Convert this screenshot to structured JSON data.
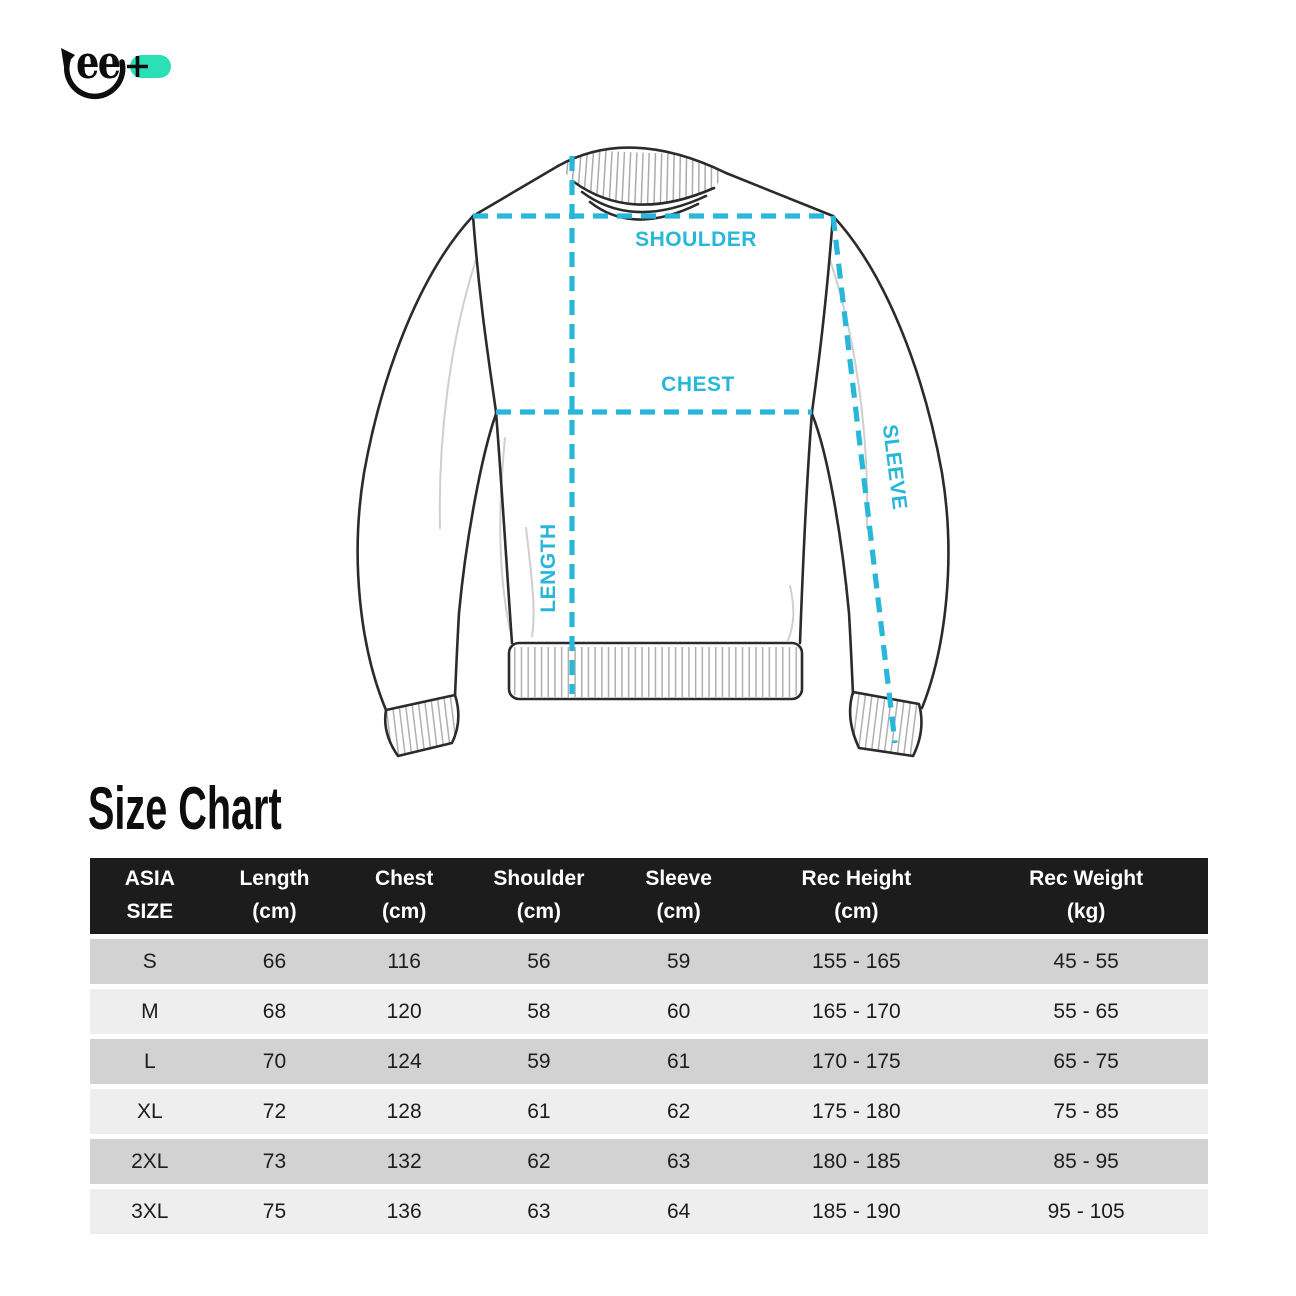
{
  "logo": {
    "text": "ee",
    "plus": "+",
    "pill_color": "#2ce0b5",
    "mark_color": "#0d0d0d"
  },
  "diagram": {
    "labels": {
      "shoulder": "SHOULDER",
      "chest": "CHEST",
      "length": "LENGTH",
      "sleeve": "SLEEVE"
    },
    "measure_line_color": "#29b7d9",
    "outline_color": "#2b2b2b"
  },
  "section_title": "Size Chart",
  "size_table": {
    "header_bg": "#1c1c1c",
    "row_dark": "#d2d2d2",
    "row_light": "#eeeeee",
    "columns": [
      {
        "line1": "ASIA",
        "line2": "SIZE"
      },
      {
        "line1": "Length",
        "line2": "(cm)"
      },
      {
        "line1": "Chest",
        "line2": "(cm)"
      },
      {
        "line1": "Shoulder",
        "line2": "(cm)"
      },
      {
        "line1": "Sleeve",
        "line2": "(cm)"
      },
      {
        "line1": "Rec Height",
        "line2": "(cm)"
      },
      {
        "line1": "Rec Weight",
        "line2": "(kg)"
      }
    ],
    "rows": [
      [
        "S",
        "66",
        "116",
        "56",
        "59",
        "155 - 165",
        "45 - 55"
      ],
      [
        "M",
        "68",
        "120",
        "58",
        "60",
        "165 - 170",
        "55 - 65"
      ],
      [
        "L",
        "70",
        "124",
        "59",
        "61",
        "170 - 175",
        "65 - 75"
      ],
      [
        "XL",
        "72",
        "128",
        "61",
        "62",
        "175 - 180",
        "75 - 85"
      ],
      [
        "2XL",
        "73",
        "132",
        "62",
        "63",
        "180 - 185",
        "85 - 95"
      ],
      [
        "3XL",
        "75",
        "136",
        "63",
        "64",
        "185 - 190",
        "95 - 105"
      ]
    ]
  }
}
